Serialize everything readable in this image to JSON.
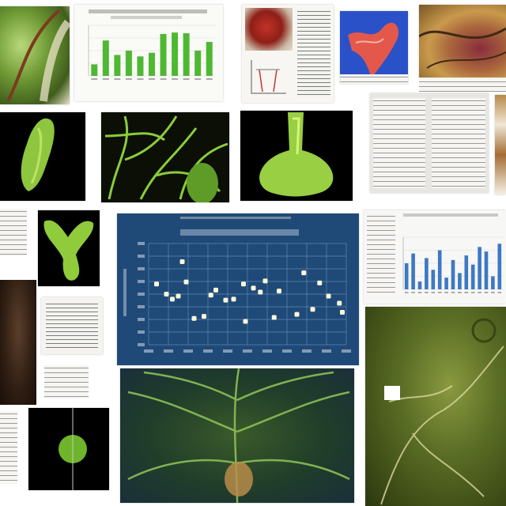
{
  "collage": {
    "background": "#ffffff",
    "panel_tags": [
      "green-cell-micrograph",
      "green-bar-chart",
      "red-specimen-with-diagram",
      "red-blue-specimen",
      "brown-tissue-micrograph",
      "paired-document-pages",
      "green-club-cell",
      "green-branching-network",
      "green-bulb-cell",
      "text-page-left",
      "green-y-shaped-cell",
      "navy-scatter-chart",
      "blue-bar-chart-page",
      "dark-brown-tissue",
      "table-document",
      "green-nerve-tissue",
      "green-sphere-cell",
      "green-branching-vein-image"
    ]
  },
  "green_bar_chart": {
    "chart_data": {
      "type": "bar",
      "categories": [
        "",
        "",
        "",
        "",
        "",
        "",
        "",
        "",
        "",
        "",
        ""
      ],
      "values": [
        16,
        49,
        29,
        35,
        27,
        32,
        58,
        60,
        59,
        35,
        47
      ],
      "ylim": [
        0,
        70
      ],
      "grid": true,
      "color": "#4fb833"
    }
  },
  "blue_bar_chart": {
    "chart_data": {
      "type": "bar",
      "categories": [
        "",
        "",
        "",
        "",
        "",
        "",
        "",
        "",
        "",
        "",
        "",
        "",
        "",
        "",
        ""
      ],
      "values": [
        40,
        55,
        12,
        48,
        30,
        60,
        18,
        45,
        25,
        52,
        38,
        65,
        58,
        20,
        70
      ],
      "ylim": [
        0,
        80
      ],
      "grid": true,
      "color": "#3d78c4"
    }
  },
  "scatter_chart": {
    "chart_data": {
      "type": "scatter",
      "xlim": [
        0,
        20
      ],
      "ylim": [
        0,
        10
      ],
      "grid": true,
      "points": [
        [
          0.8,
          6.0
        ],
        [
          1.8,
          5.0
        ],
        [
          2.4,
          4.5
        ],
        [
          3.0,
          4.8
        ],
        [
          3.4,
          8.2
        ],
        [
          3.8,
          6.2
        ],
        [
          4.6,
          2.6
        ],
        [
          5.6,
          2.8
        ],
        [
          6.3,
          4.9
        ],
        [
          6.8,
          5.4
        ],
        [
          7.8,
          4.4
        ],
        [
          8.6,
          4.5
        ],
        [
          9.6,
          6.0
        ],
        [
          9.8,
          2.3
        ],
        [
          10.6,
          5.6
        ],
        [
          11.3,
          5.2
        ],
        [
          11.8,
          6.3
        ],
        [
          12.7,
          2.7
        ],
        [
          13.2,
          5.3
        ],
        [
          15.0,
          3.0
        ],
        [
          15.7,
          7.1
        ],
        [
          16.6,
          3.5
        ],
        [
          17.3,
          6.1
        ],
        [
          18.2,
          4.8
        ],
        [
          19.3,
          4.1
        ],
        [
          19.6,
          3.2
        ]
      ],
      "bg_color": "#1f4a78",
      "grid_color": "#5d86b2",
      "point_color": "#fbf7d8"
    }
  }
}
